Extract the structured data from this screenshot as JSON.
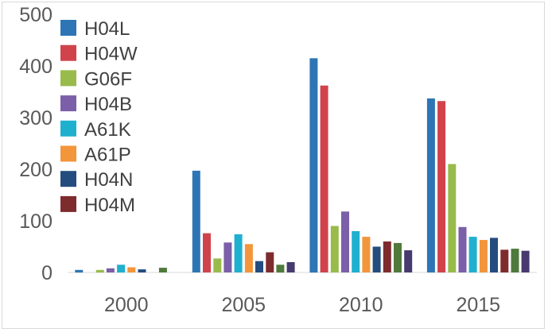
{
  "chart_data": {
    "type": "bar",
    "title": "",
    "xlabel": "",
    "ylabel": "",
    "ylim": [
      0,
      500
    ],
    "yticks": [
      "0",
      "100",
      "200",
      "300",
      "400",
      "500"
    ],
    "categories": [
      "2000",
      "2005",
      "2010",
      "2015"
    ],
    "series": [
      {
        "name": "H04L",
        "color": "#2e75b6",
        "values": [
          5,
          197,
          415,
          337
        ]
      },
      {
        "name": "H04W",
        "color": "#d0434b",
        "values": [
          0,
          76,
          362,
          332
        ]
      },
      {
        "name": "G06F",
        "color": "#98bb4c",
        "values": [
          5,
          27,
          90,
          210
        ]
      },
      {
        "name": "H04B",
        "color": "#7b5fa8",
        "values": [
          8,
          58,
          118,
          88
        ]
      },
      {
        "name": "A61K",
        "color": "#1fb0cf",
        "values": [
          15,
          74,
          80,
          69
        ]
      },
      {
        "name": "A61P",
        "color": "#f2953b",
        "values": [
          10,
          55,
          69,
          63
        ]
      },
      {
        "name": "H04N",
        "color": "#244c7e",
        "values": [
          6,
          22,
          50,
          67
        ]
      },
      {
        "name": "H04M",
        "color": "#7e2b2e",
        "values": [
          0,
          39,
          60,
          44
        ]
      },
      {
        "name": "",
        "color": "#4f7a3c",
        "values": [
          9,
          15,
          57,
          46
        ]
      },
      {
        "name": "",
        "color": "#463a6f",
        "values": [
          0,
          20,
          43,
          42
        ]
      }
    ],
    "legend_position": "top-left"
  }
}
